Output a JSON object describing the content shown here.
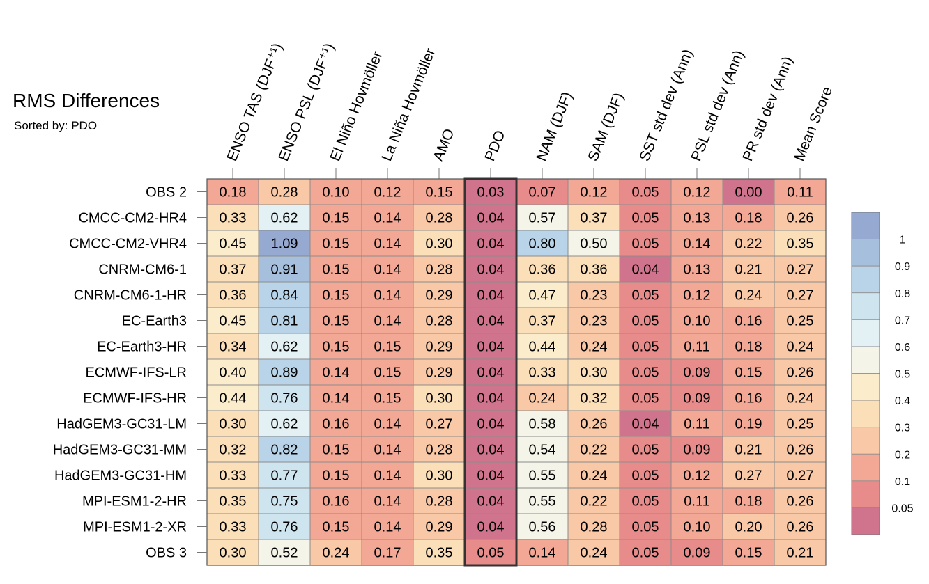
{
  "chart_data": {
    "type": "heatmap",
    "title": "RMS Differences",
    "subtitle": "Sorted by: PDO",
    "columns": [
      "ENSO TAS (DJF⁺¹)",
      "ENSO PSL (DJF⁺¹)",
      "El Niño Hovmöller",
      "La Niña Hovmöller",
      "AMO",
      "PDO",
      "NAM (DJF)",
      "SAM (DJF)",
      "SST std dev (Ann)",
      "PSL std dev (Ann)",
      "PR std dev (Ann)",
      "Mean Score"
    ],
    "highlighted_column": "PDO",
    "rows": [
      {
        "name": "OBS 2",
        "values": [
          "0.18",
          "0.28",
          "0.10",
          "0.12",
          "0.15",
          "0.03",
          "0.07",
          "0.12",
          "0.05",
          "0.12",
          "0.00",
          "0.11"
        ]
      },
      {
        "name": "CMCC-CM2-HR4",
        "values": [
          "0.33",
          "0.62",
          "0.15",
          "0.14",
          "0.28",
          "0.04",
          "0.57",
          "0.37",
          "0.05",
          "0.13",
          "0.18",
          "0.26"
        ]
      },
      {
        "name": "CMCC-CM2-VHR4",
        "values": [
          "0.45",
          "1.09",
          "0.15",
          "0.14",
          "0.30",
          "0.04",
          "0.80",
          "0.50",
          "0.05",
          "0.14",
          "0.22",
          "0.35"
        ]
      },
      {
        "name": "CNRM-CM6-1",
        "values": [
          "0.37",
          "0.91",
          "0.15",
          "0.14",
          "0.28",
          "0.04",
          "0.36",
          "0.36",
          "0.04",
          "0.13",
          "0.21",
          "0.27"
        ]
      },
      {
        "name": "CNRM-CM6-1-HR",
        "values": [
          "0.36",
          "0.84",
          "0.15",
          "0.14",
          "0.29",
          "0.04",
          "0.47",
          "0.23",
          "0.05",
          "0.12",
          "0.24",
          "0.27"
        ]
      },
      {
        "name": "EC-Earth3",
        "values": [
          "0.45",
          "0.81",
          "0.15",
          "0.14",
          "0.28",
          "0.04",
          "0.37",
          "0.23",
          "0.05",
          "0.10",
          "0.16",
          "0.25"
        ]
      },
      {
        "name": "EC-Earth3-HR",
        "values": [
          "0.34",
          "0.62",
          "0.15",
          "0.15",
          "0.29",
          "0.04",
          "0.44",
          "0.24",
          "0.05",
          "0.11",
          "0.18",
          "0.24"
        ]
      },
      {
        "name": "ECMWF-IFS-LR",
        "values": [
          "0.40",
          "0.89",
          "0.14",
          "0.15",
          "0.29",
          "0.04",
          "0.33",
          "0.30",
          "0.05",
          "0.09",
          "0.15",
          "0.26"
        ]
      },
      {
        "name": "ECMWF-IFS-HR",
        "values": [
          "0.44",
          "0.76",
          "0.14",
          "0.15",
          "0.30",
          "0.04",
          "0.24",
          "0.32",
          "0.05",
          "0.09",
          "0.16",
          "0.24"
        ]
      },
      {
        "name": "HadGEM3-GC31-LM",
        "values": [
          "0.30",
          "0.62",
          "0.16",
          "0.14",
          "0.27",
          "0.04",
          "0.58",
          "0.26",
          "0.04",
          "0.11",
          "0.19",
          "0.25"
        ]
      },
      {
        "name": "HadGEM3-GC31-MM",
        "values": [
          "0.32",
          "0.82",
          "0.15",
          "0.14",
          "0.28",
          "0.04",
          "0.54",
          "0.22",
          "0.05",
          "0.09",
          "0.21",
          "0.26"
        ]
      },
      {
        "name": "HadGEM3-GC31-HM",
        "values": [
          "0.33",
          "0.77",
          "0.15",
          "0.14",
          "0.30",
          "0.04",
          "0.55",
          "0.24",
          "0.05",
          "0.12",
          "0.27",
          "0.27"
        ]
      },
      {
        "name": "MPI-ESM1-2-HR",
        "values": [
          "0.35",
          "0.75",
          "0.16",
          "0.14",
          "0.28",
          "0.04",
          "0.55",
          "0.22",
          "0.05",
          "0.11",
          "0.18",
          "0.26"
        ]
      },
      {
        "name": "MPI-ESM1-2-XR",
        "values": [
          "0.33",
          "0.76",
          "0.15",
          "0.14",
          "0.29",
          "0.04",
          "0.56",
          "0.28",
          "0.05",
          "0.10",
          "0.20",
          "0.26"
        ]
      },
      {
        "name": "OBS 3",
        "values": [
          "0.30",
          "0.52",
          "0.24",
          "0.17",
          "0.35",
          "0.05",
          "0.14",
          "0.24",
          "0.05",
          "0.09",
          "0.15",
          "0.21"
        ]
      }
    ],
    "colorbar": {
      "labels": [
        "1",
        "0.9",
        "0.8",
        "0.7",
        "0.6",
        "0.5",
        "0.4",
        "0.3",
        "0.2",
        "0.1",
        "0.05"
      ],
      "bins": [
        {
          "min": 1.0,
          "color": "#95a9d1"
        },
        {
          "min": 0.9,
          "color": "#a6bfdc"
        },
        {
          "min": 0.8,
          "color": "#b9d4e8"
        },
        {
          "min": 0.7,
          "color": "#cee4ef"
        },
        {
          "min": 0.6,
          "color": "#e3f0f4"
        },
        {
          "min": 0.5,
          "color": "#f4f4e9"
        },
        {
          "min": 0.4,
          "color": "#fbedcc"
        },
        {
          "min": 0.3,
          "color": "#fbdfb9"
        },
        {
          "min": 0.2,
          "color": "#f9c8a6"
        },
        {
          "min": 0.1,
          "color": "#f3a795"
        },
        {
          "min": 0.05,
          "color": "#e88b8b"
        },
        {
          "min": -1,
          "color": "#d0738d"
        }
      ]
    }
  }
}
